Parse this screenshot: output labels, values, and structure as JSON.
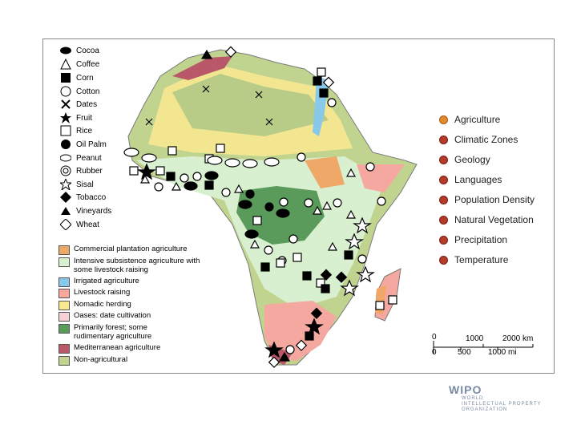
{
  "legend": {
    "crops": [
      {
        "label": "Cocoa",
        "icon": "cocoa-icon"
      },
      {
        "label": "Coffee",
        "icon": "coffee-icon"
      },
      {
        "label": "Corn",
        "icon": "corn-icon"
      },
      {
        "label": "Cotton",
        "icon": "cotton-icon"
      },
      {
        "label": "Dates",
        "icon": "dates-icon"
      },
      {
        "label": "Fruit",
        "icon": "fruit-icon"
      },
      {
        "label": "Rice",
        "icon": "rice-icon"
      },
      {
        "label": "Oil Palm",
        "icon": "oil-palm-icon"
      },
      {
        "label": "Peanut",
        "icon": "peanut-icon"
      },
      {
        "label": "Rubber",
        "icon": "rubber-icon"
      },
      {
        "label": "Sisal",
        "icon": "sisal-icon"
      },
      {
        "label": "Tobacco",
        "icon": "tobacco-icon"
      },
      {
        "label": "Vineyards",
        "icon": "vineyards-icon"
      },
      {
        "label": "Wheat",
        "icon": "wheat-icon"
      }
    ],
    "zones": [
      {
        "label": "Commercial plantation agriculture",
        "color": "#f0a868"
      },
      {
        "label": "Intensive subsistence agriculture with some livestock raising",
        "color": "#d8f0d0"
      },
      {
        "label": "Irrigated agriculture",
        "color": "#88c8e8"
      },
      {
        "label": "Livestock raising",
        "color": "#f4a8a0"
      },
      {
        "label": "Nomadic herding",
        "color": "#f8e890"
      },
      {
        "label": "Oases: date cultivation",
        "color": "#f8d0d8"
      },
      {
        "label": "Primarily forest; some rudimentary agriculture",
        "color": "#5a9a5a"
      },
      {
        "label": "Mediterranean agriculture",
        "color": "#b85868"
      },
      {
        "label": "Non-agricultural",
        "color": "#c0d490"
      }
    ]
  },
  "topics": [
    {
      "label": "Agriculture",
      "active": true
    },
    {
      "label": "Climatic Zones",
      "active": false
    },
    {
      "label": "Geology",
      "active": false
    },
    {
      "label": "Languages",
      "active": false
    },
    {
      "label": "Population Density",
      "active": false
    },
    {
      "label": "Natural Vegetation",
      "active": false
    },
    {
      "label": "Precipitation",
      "active": false
    },
    {
      "label": "Temperature",
      "active": false
    }
  ],
  "scale": {
    "km_0": "0",
    "km_1": "1000",
    "km_2": "2000 km",
    "mi_0": "0",
    "mi_1": "500",
    "mi_2": "1000 mi"
  },
  "logo": {
    "name": "WIPO",
    "line1": "WORLD",
    "line2": "INTELLECTUAL PROPERTY",
    "line3": "ORGANIZATION"
  }
}
